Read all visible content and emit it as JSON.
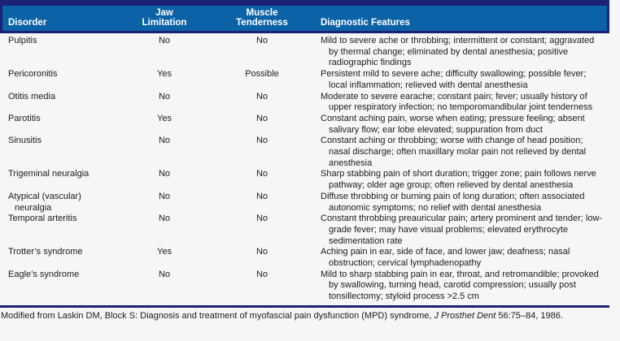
{
  "colors": {
    "header_blue": "#0b62a6",
    "navy_rule": "#1c2173",
    "header_text": "#ffffff",
    "body_text": "#1b1b1b",
    "page_background": "#f6f6f7"
  },
  "table": {
    "columns": [
      {
        "label": "Disorder"
      },
      {
        "label": "Jaw Limitation"
      },
      {
        "label": "Muscle Tenderness"
      },
      {
        "label": "Diagnostic Features"
      }
    ],
    "rows": [
      {
        "disorder": "Pulpitis",
        "jaw_limitation": "No",
        "muscle_tenderness": "No",
        "diagnostic_features": "Mild to severe ache or throbbing; intermittent or constant; aggravated by thermal change; eliminated by dental anesthesia; positive radiographic findings"
      },
      {
        "disorder": "Pericoronitis",
        "jaw_limitation": "Yes",
        "muscle_tenderness": "Possible",
        "diagnostic_features": "Persistent mild to severe ache; difficulty swallowing; possible fever; local inflammation; relieved with dental anesthesia"
      },
      {
        "disorder": "Otitis media",
        "jaw_limitation": "No",
        "muscle_tenderness": "No",
        "diagnostic_features": "Moderate to severe earache; constant pain; fever; usually history of upper respiratory infection; no temporomandibular joint tenderness"
      },
      {
        "disorder": "Parotitis",
        "jaw_limitation": "Yes",
        "muscle_tenderness": "No",
        "diagnostic_features": "Constant aching pain, worse when eating; pressure feeling; absent salivary flow; ear lobe elevated; suppuration from duct"
      },
      {
        "disorder": "Sinusitis",
        "jaw_limitation": "No",
        "muscle_tenderness": "No",
        "diagnostic_features": "Constant aching or throbbing; worse with change of head position; nasal discharge; often maxillary molar pain not relieved by dental anesthesia"
      },
      {
        "disorder": "Trigeminal neuralgia",
        "jaw_limitation": "No",
        "muscle_tenderness": "No",
        "diagnostic_features": "Sharp stabbing pain of short duration; trigger zone; pain follows nerve pathway; older age group; often relieved by dental anesthesia"
      },
      {
        "disorder": "Atypical (vascular) neuralgia",
        "jaw_limitation": "No",
        "muscle_tenderness": "No",
        "diagnostic_features": "Diffuse throbbing or burning pain of long duration; often associated autonomic symptoms; no relief with dental anesthesia"
      },
      {
        "disorder": "Temporal arteritis",
        "jaw_limitation": "No",
        "muscle_tenderness": "No",
        "diagnostic_features": "Constant throbbing preauricular pain; artery prominent and tender; low-grade fever; may have visual problems; elevated erythrocyte sedimentation rate"
      },
      {
        "disorder": "Trotter’s syndrome",
        "jaw_limitation": "Yes",
        "muscle_tenderness": "No",
        "diagnostic_features": "Aching pain in ear, side of face, and lower jaw; deafness; nasal obstruction; cervical lymphadenopathy"
      },
      {
        "disorder": "Eagle’s syndrome",
        "jaw_limitation": "No",
        "muscle_tenderness": "No",
        "diagnostic_features": "Mild to sharp stabbing pain in ear, throat, and retromandible; provoked by swallowing, turning head, carotid compression; usually post tonsillectomy; styloid process >2.5 cm"
      }
    ],
    "footnote": {
      "prefix": "Modified from Laskin DM, Block S: Diagnosis and treatment of myofascial pain dysfunction (MPD) syndrome, ",
      "journal": "J Prosthet Dent",
      "suffix": " 56:75–84, 1986."
    }
  }
}
